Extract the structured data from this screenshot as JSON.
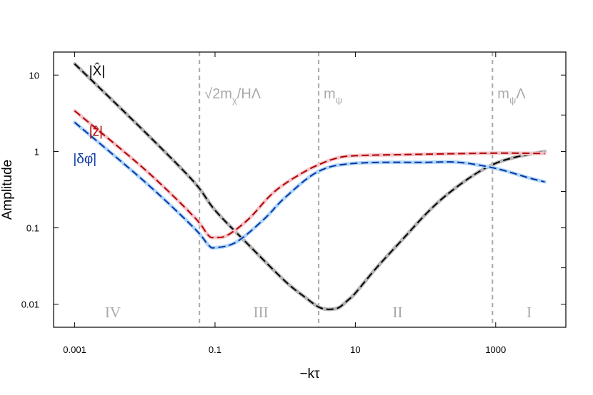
{
  "chart_data": {
    "type": "line",
    "xlabel": "−kτ",
    "ylabel": "Amplitude",
    "xscale": "log",
    "yscale": "log",
    "xlim": [
      0.0005,
      10000
    ],
    "ylim": [
      0.005,
      20
    ],
    "x_ticks": [
      {
        "value": 0.001,
        "label": "0.001"
      },
      {
        "value": 0.1,
        "label": "0.1"
      },
      {
        "value": 10,
        "label": "10"
      },
      {
        "value": 1000,
        "label": "1000"
      }
    ],
    "y_ticks": [
      {
        "value": 0.01,
        "label": "0.01"
      },
      {
        "value": 0.1,
        "label": "0.1"
      },
      {
        "value": 1,
        "label": "1"
      },
      {
        "value": 10,
        "label": "10"
      }
    ],
    "grid": false,
    "vertical_markers": [
      {
        "x": 0.06,
        "label_main": "√2m",
        "label_sub": "χ",
        "label_tail": "/HΛ"
      },
      {
        "x": 3,
        "label_main": "m",
        "label_sub": "ψ",
        "label_tail": ""
      },
      {
        "x": 900,
        "label_main": "m",
        "label_sub": "ψ",
        "label_tail": "Λ"
      }
    ],
    "regions": [
      {
        "label": "IV",
        "x": 0.0035
      },
      {
        "label": "III",
        "x": 0.45
      },
      {
        "label": "II",
        "x": 40
      },
      {
        "label": "I",
        "x": 3000
      }
    ],
    "series": [
      {
        "name": "|X̂|",
        "label_base": "X",
        "label_x": 0.0016,
        "label_y": 10,
        "color": "#000000",
        "band_color": "#b5b5b5",
        "x": [
          0.001,
          0.01,
          0.05,
          0.1,
          0.3,
          1,
          2,
          3,
          4,
          5,
          6,
          8,
          10,
          20,
          50,
          100,
          200,
          500,
          1000,
          2000,
          5000
        ],
        "y": [
          14,
          1.8,
          0.4,
          0.17,
          0.06,
          0.02,
          0.012,
          0.0092,
          0.0086,
          0.0087,
          0.0092,
          0.0115,
          0.014,
          0.03,
          0.075,
          0.15,
          0.27,
          0.5,
          0.7,
          0.85,
          1.0
        ]
      },
      {
        "name": "|ẑ|",
        "label_base": "z",
        "label_x": 0.0016,
        "label_y": 1.6,
        "color": "#b30000",
        "band_color": "#f3c6cc",
        "x": [
          0.001,
          0.01,
          0.05,
          0.08,
          0.1,
          0.15,
          0.3,
          0.6,
          1,
          2,
          3,
          5,
          10,
          100,
          1000,
          5000
        ],
        "y": [
          3.4,
          0.58,
          0.14,
          0.08,
          0.075,
          0.08,
          0.13,
          0.26,
          0.38,
          0.56,
          0.67,
          0.8,
          0.88,
          0.92,
          0.95,
          0.94
        ]
      },
      {
        "name": "|δφ̂|",
        "label_base": "δφ",
        "label_x": 0.00095,
        "label_y": 0.7,
        "color": "#0a35a8",
        "band_color": "#aed6f7",
        "x": [
          0.001,
          0.01,
          0.05,
          0.08,
          0.1,
          0.2,
          0.5,
          1,
          3,
          10,
          100,
          300,
          1000,
          3000,
          5000
        ],
        "y": [
          2.4,
          0.4,
          0.1,
          0.06,
          0.055,
          0.065,
          0.13,
          0.25,
          0.55,
          0.7,
          0.72,
          0.72,
          0.6,
          0.45,
          0.4
        ]
      }
    ]
  }
}
